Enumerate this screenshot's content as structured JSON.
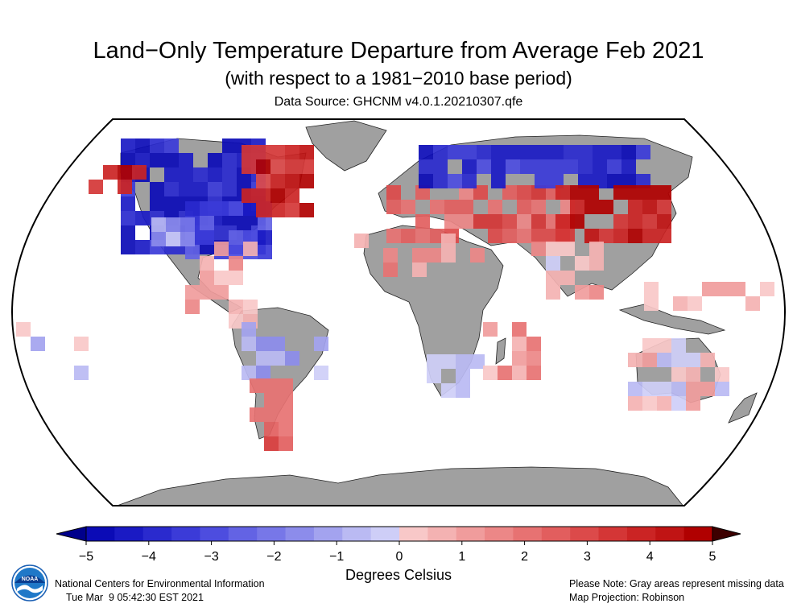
{
  "header": {
    "title": "Land−Only Temperature Departure from Average Feb 2021",
    "subtitle": "(with respect to a 1981−2010 base period)",
    "source": "Data Source: GHCNM v4.0.1.20210307.qfe"
  },
  "map": {
    "projection_icon": "robinson-globe",
    "ocean_color": "#ffffff",
    "missing_color": "#a0a0a0",
    "outline_color": "#000000"
  },
  "colorbar": {
    "label": "Degrees Celsius",
    "ticks": [
      "−5",
      "−4",
      "−3",
      "−2",
      "−1",
      "0",
      "1",
      "2",
      "3",
      "4",
      "5"
    ],
    "colors": [
      "#0b0bb6",
      "#1a1ac4",
      "#2a2ace",
      "#3b3bd8",
      "#4d4ddf",
      "#6363e4",
      "#7777e8",
      "#8c8ceb",
      "#a3a3ef",
      "#babaf3",
      "#cecef7",
      "#f8c8c8",
      "#f4b2b2",
      "#f09c9c",
      "#ec8787",
      "#e77272",
      "#e25e5e",
      "#dc4a4a",
      "#d43636",
      "#cb2424",
      "#c01414",
      "#b00000"
    ],
    "low_arrow_color": "#00008b",
    "high_arrow_color": "#3d0000"
  },
  "footer": {
    "agency": "National Centers for Environmental Information",
    "timestamp": "Tue Mar  9 05:42:30 EST 2021",
    "note": "Please Note: Gray areas represent missing data",
    "projection": "Map Projection: Robinson",
    "logo_icon": "noaa-logo-icon",
    "logo_text": "NOAA"
  }
}
